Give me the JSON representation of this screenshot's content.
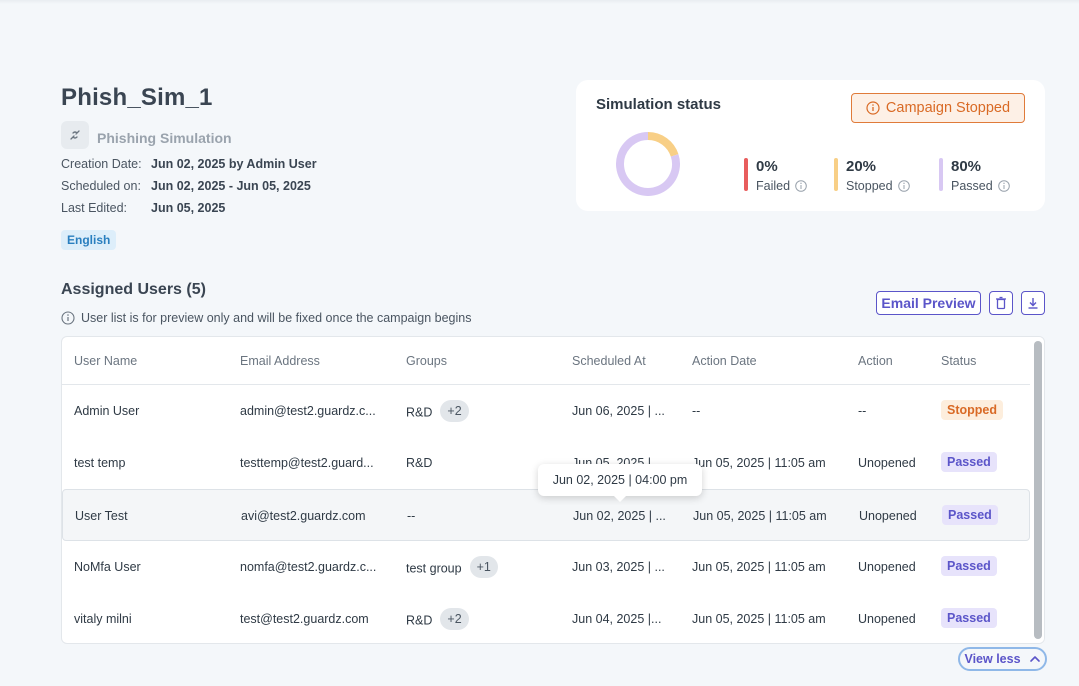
{
  "campaign": {
    "title": "Phish_Sim_1",
    "type_label": "Phishing Simulation",
    "creation_label": "Creation Date:",
    "creation_value": "Jun 02, 2025 by Admin User",
    "scheduled_label": "Scheduled on:",
    "scheduled_value": "Jun 02, 2025 - Jun 05, 2025",
    "edited_label": "Last Edited:",
    "edited_value": "Jun 05, 2025",
    "language": "English"
  },
  "status_card": {
    "title": "Simulation status",
    "badge": "Campaign Stopped",
    "stats": [
      {
        "pct": "0%",
        "label": "Failed",
        "color": "#e85d5d"
      },
      {
        "pct": "20%",
        "label": "Stopped",
        "color": "#f8cf86"
      },
      {
        "pct": "80%",
        "label": "Passed",
        "color": "#d8c8f3"
      }
    ],
    "donut": [
      {
        "label": "Stopped",
        "value": 20,
        "color": "#f8cf86"
      },
      {
        "label": "Passed",
        "value": 80,
        "color": "#d8c8f3"
      }
    ]
  },
  "assigned": {
    "title": "Assigned Users (5)",
    "note": "User list is for preview only and will be fixed once the campaign begins",
    "email_preview": "Email Preview"
  },
  "table": {
    "headers": [
      "User Name",
      "Email Address",
      "Groups",
      "Scheduled At",
      "Action Date",
      "Action",
      "Status"
    ],
    "rows": [
      {
        "name": "Admin User",
        "email": "admin@test2.guardz.c...",
        "group": "R&D",
        "extra": "+2",
        "scheduled": "Jun 06, 2025 | ...",
        "action_date": "--",
        "action": "--",
        "status": "Stopped"
      },
      {
        "name": "test temp",
        "email": "testtemp@test2.guard...",
        "group": "R&D",
        "extra": "",
        "scheduled": "Jun 05, 2025 | ...",
        "action_date": "Jun 05, 2025 | 11:05 am",
        "action": "Unopened",
        "status": "Passed"
      },
      {
        "name": "User Test",
        "email": "avi@test2.guardz.com",
        "group": "--",
        "extra": "",
        "scheduled": "Jun 02, 2025 | ...",
        "action_date": "Jun 05, 2025 | 11:05 am",
        "action": "Unopened",
        "status": "Passed"
      },
      {
        "name": "NoMfa User",
        "email": "nomfa@test2.guardz.c...",
        "group": "test group",
        "extra": "+1",
        "scheduled": "Jun 03, 2025 | ...",
        "action_date": "Jun 05, 2025 | 11:05 am",
        "action": "Unopened",
        "status": "Passed"
      },
      {
        "name": "vitaly milni",
        "email": "test@test2.guardz.com",
        "group": "R&D",
        "extra": "+2",
        "scheduled": "Jun 04, 2025 |...",
        "action_date": "Jun 05, 2025 | 11:05 am",
        "action": "Unopened",
        "status": "Passed"
      }
    ]
  },
  "tooltip": "Jun 02, 2025 | 04:00 pm",
  "view_less": "View less",
  "icons": {
    "type": "link-icon",
    "badge": "info-icon",
    "delete": "trash-icon",
    "download": "download-icon",
    "collapse": "chevron-up-icon"
  }
}
